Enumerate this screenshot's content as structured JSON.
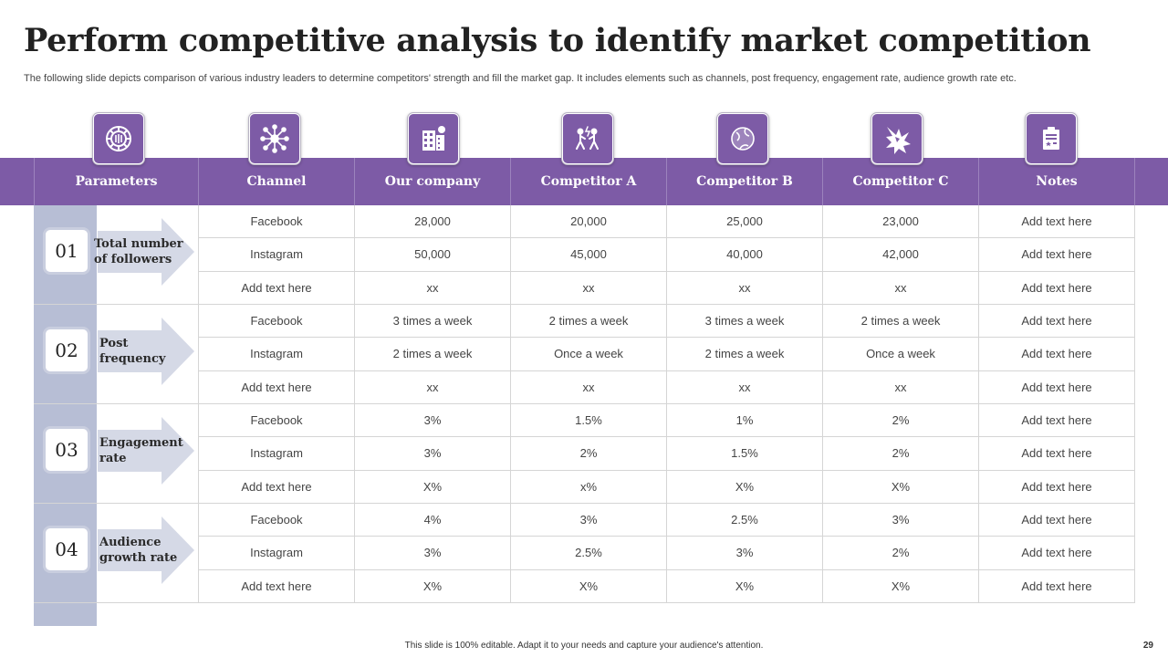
{
  "title": "Perform competitive analysis to identify market competition",
  "subtitle": "The following slide depicts comparison of various industry leaders to determine competitors' strength and fill the market gap. It includes elements such as channels, post frequency, engagement rate, audience growth rate etc.",
  "icons": [
    "gear-network-icon",
    "network-icon",
    "building-icon",
    "competition-icon",
    "globe-icon",
    "star-burst-icon",
    "clipboard-icon"
  ],
  "colors": {
    "accent": "#7d5ba6",
    "strip": "#b7bed5",
    "arrow": "#d5d9e6"
  },
  "headers": [
    "Parameters",
    "Channel",
    "Our company",
    "Competitor A",
    "Competitor B",
    "Competitor C",
    "Notes"
  ],
  "groups": [
    {
      "number": "01",
      "label_lines": [
        "Total number",
        "of followers"
      ],
      "rows": [
        [
          "Facebook",
          "28,000",
          "20,000",
          "25,000",
          "23,000",
          "Add text here"
        ],
        [
          "Instagram",
          "50,000",
          "45,000",
          "40,000",
          "42,000",
          "Add text here"
        ],
        [
          "Add text here",
          "xx",
          "xx",
          "xx",
          "xx",
          "Add text here"
        ]
      ]
    },
    {
      "number": "02",
      "label_lines": [
        "Post",
        "frequency"
      ],
      "rows": [
        [
          "Facebook",
          "3 times a week",
          "2 times a week",
          "3 times a week",
          "2 times a week",
          "Add text here"
        ],
        [
          "Instagram",
          "2 times a week",
          "Once a week",
          "2 times a week",
          "Once a week",
          "Add text here"
        ],
        [
          "Add text here",
          "xx",
          "xx",
          "xx",
          "xx",
          "Add text here"
        ]
      ]
    },
    {
      "number": "03",
      "label_lines": [
        "Engagement",
        "rate"
      ],
      "rows": [
        [
          "Facebook",
          "3%",
          "1.5%",
          "1%",
          "2%",
          "Add text here"
        ],
        [
          "Instagram",
          "3%",
          "2%",
          "1.5%",
          "2%",
          "Add text here"
        ],
        [
          "Add text here",
          "X%",
          "x%",
          "X%",
          "X%",
          "Add text here"
        ]
      ]
    },
    {
      "number": "04",
      "label_lines": [
        "Audience",
        "growth rate"
      ],
      "rows": [
        [
          "Facebook",
          "4%",
          "3%",
          "2.5%",
          "3%",
          "Add text here"
        ],
        [
          "Instagram",
          "3%",
          "2.5%",
          "3%",
          "2%",
          "Add text here"
        ],
        [
          "Add text here",
          "X%",
          "X%",
          "X%",
          "X%",
          "Add text here"
        ]
      ]
    }
  ],
  "footer": "This slide is 100% editable. Adapt it to your needs and capture your audience's attention.",
  "page_number": "29"
}
